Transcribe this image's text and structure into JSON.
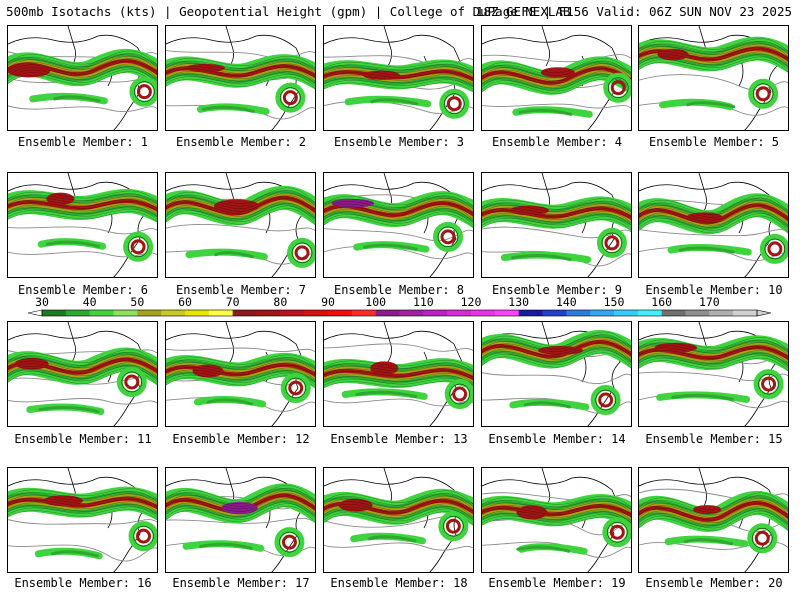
{
  "header": {
    "title_left": "500mb Isotachs (kts) | Geopotential Height (gpm) | College of DuPage NEXLAB",
    "title_right": "18Z GEFS | F156 Valid: 06Z SUN NOV 23 2025"
  },
  "panels": [
    {
      "caption": "Ensemble Member: 1"
    },
    {
      "caption": "Ensemble Member: 2"
    },
    {
      "caption": "Ensemble Member: 3"
    },
    {
      "caption": "Ensemble Member: 4"
    },
    {
      "caption": "Ensemble Member: 5"
    },
    {
      "caption": "Ensemble Member: 6"
    },
    {
      "caption": "Ensemble Member: 7"
    },
    {
      "caption": "Ensemble Member: 8"
    },
    {
      "caption": "Ensemble Member: 9"
    },
    {
      "caption": "Ensemble Member: 10"
    },
    {
      "caption": "Ensemble Member: 11"
    },
    {
      "caption": "Ensemble Member: 12"
    },
    {
      "caption": "Ensemble Member: 13"
    },
    {
      "caption": "Ensemble Member: 14"
    },
    {
      "caption": "Ensemble Member: 15"
    },
    {
      "caption": "Ensemble Member: 16"
    },
    {
      "caption": "Ensemble Member: 17"
    },
    {
      "caption": "Ensemble Member: 18"
    },
    {
      "caption": "Ensemble Member: 19"
    },
    {
      "caption": "Ensemble Member: 20"
    }
  ],
  "legend": {
    "labels": [
      "30",
      "40",
      "50",
      "60",
      "70",
      "80",
      "90",
      "100",
      "110",
      "120",
      "130",
      "140",
      "150",
      "160",
      "170"
    ],
    "colors": [
      "#1f7a1f",
      "#2ea82e",
      "#3fd43f",
      "#8fe05a",
      "#a3a318",
      "#c9c922",
      "#e6e600",
      "#ffff40",
      "#8b1a1a",
      "#a31414",
      "#c0101a",
      "#d81010",
      "#ee1010",
      "#ff2a2a",
      "#8b1a8b",
      "#a020a0",
      "#c020c0",
      "#d82ad8",
      "#ee30ee",
      "#ff40ff",
      "#1a1aa0",
      "#2040d0",
      "#2a7ae0",
      "#30a8f0",
      "#30d0f8",
      "#40f0ff",
      "#707070",
      "#909090",
      "#b0b0b0",
      "#d0d0d0"
    ]
  },
  "colors": {
    "jet_light": "#3fd43f",
    "jet_mid": "#2ea82e",
    "jet_olive": "#a3a318",
    "jet_core": "#a31414",
    "jet_purple": "#8b1a8b",
    "height_contour": "#8a8a8a"
  }
}
